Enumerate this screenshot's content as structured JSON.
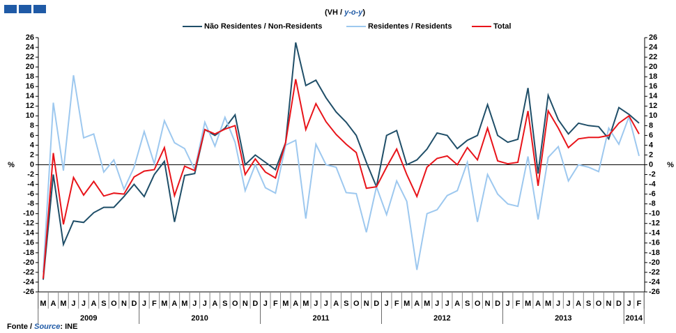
{
  "chart_data": {
    "type": "line",
    "subtitle_parts": [
      "(VH / ",
      "y-o-y",
      ")"
    ],
    "ylabel": "%",
    "y2label": "%",
    "categories": [
      "M",
      "A",
      "M",
      "J",
      "J",
      "A",
      "S",
      "O",
      "N",
      "D",
      "J",
      "F",
      "M",
      "A",
      "M",
      "J",
      "J",
      "A",
      "S",
      "O",
      "N",
      "D",
      "J",
      "F",
      "M",
      "A",
      "M",
      "J",
      "J",
      "A",
      "S",
      "O",
      "N",
      "D",
      "J",
      "F",
      "M",
      "A",
      "M",
      "J",
      "J",
      "A",
      "S",
      "O",
      "N",
      "D",
      "J",
      "F",
      "M",
      "A",
      "M",
      "J",
      "J",
      "A",
      "S",
      "O",
      "N",
      "D",
      "J",
      "F"
    ],
    "years": [
      "2009",
      "2010",
      "2011",
      "2012",
      "2013",
      "2014"
    ],
    "series": [
      {
        "name": "Não Residentes / Non-Residents",
        "color": "#1f4e68",
        "values": [
          -23.5,
          -2,
          -16.3,
          -11.5,
          -11.8,
          -9.8,
          -8.7,
          -8.7,
          -6.5,
          -4,
          -6.5,
          -2,
          0.7,
          -11.7,
          -2.2,
          -1.8,
          7.2,
          6,
          7.5,
          10.2,
          0,
          2,
          0.5,
          -1,
          4.5,
          25,
          16.2,
          17.3,
          13.7,
          10.8,
          8.7,
          6,
          0.5,
          -4.5,
          6,
          7,
          0,
          1,
          3.2,
          6.5,
          6,
          3.3,
          5,
          6,
          12.3,
          6,
          4.6,
          5.2,
          15.7,
          -1.8,
          14.2,
          9.2,
          6.3,
          8.5,
          8,
          7.8,
          5.3,
          11.7,
          10.3,
          8.5
        ]
      },
      {
        "name": "Residentes / Residents",
        "color": "#9dc8ef",
        "values": [
          -22,
          12.7,
          -1.2,
          18.3,
          5.5,
          6.3,
          -1.5,
          1,
          -5,
          -0.5,
          6.8,
          0.2,
          9,
          4.5,
          3.3,
          -1,
          8.7,
          3.8,
          9.7,
          4.6,
          -5.3,
          0,
          -4.7,
          -5.8,
          4,
          5,
          -11,
          4.2,
          0,
          -0.5,
          -5.7,
          -5.9,
          -13.8,
          -4.5,
          -10.2,
          -3.3,
          -7.5,
          -21.5,
          -10,
          -9.2,
          -6.3,
          -5.3,
          0.5,
          -11.7,
          -2,
          -6,
          -8,
          -8.5,
          1.7,
          -11.2,
          1.5,
          3.7,
          -3.3,
          0,
          -0.5,
          -1.4,
          7.5,
          4.2,
          9.8,
          1.8
        ]
      },
      {
        "name": "Total",
        "color": "#e8141a",
        "values": [
          -23.3,
          2.4,
          -12.2,
          -2.6,
          -6.2,
          -3.4,
          -6.4,
          -5.8,
          -6,
          -2.5,
          -1.3,
          -1,
          3.5,
          -6.3,
          -0.3,
          -1.2,
          7.2,
          6.3,
          7.3,
          8,
          -2,
          1.2,
          -1.5,
          -2.7,
          4.5,
          17.5,
          7.2,
          12.5,
          8.8,
          6.2,
          4.2,
          2.5,
          -4.8,
          -4.5,
          -0.5,
          3.2,
          -2,
          -6.5,
          -0.5,
          1.3,
          1.8,
          0,
          3.5,
          1,
          7.5,
          0.8,
          0.2,
          0.5,
          11,
          -4.3,
          11,
          7.5,
          3.5,
          5.3,
          5.6,
          5.6,
          6,
          8.5,
          10,
          6.3
        ]
      }
    ],
    "ylim": [
      -26,
      26
    ],
    "yticks": [
      -26,
      -24,
      -22,
      -20,
      -18,
      -16,
      -14,
      -12,
      -10,
      -8,
      -6,
      -4,
      -2,
      0,
      2,
      4,
      6,
      8,
      10,
      12,
      14,
      16,
      18,
      20,
      22,
      24,
      26
    ],
    "y2lim": [
      -26,
      26
    ],
    "y2ticks": [
      -26,
      -24,
      -22,
      -20,
      -18,
      -16,
      -14,
      -12,
      -10,
      -8,
      -6,
      -4,
      -2,
      0,
      2,
      4,
      6,
      8,
      10,
      12,
      14,
      16,
      18,
      20,
      22,
      24,
      26
    ],
    "source_parts": [
      "Fonte / ",
      "Source",
      ": INE"
    ]
  }
}
